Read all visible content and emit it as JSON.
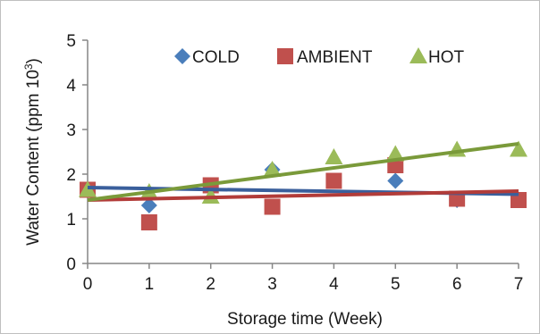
{
  "chart_data": {
    "type": "scatter",
    "title": "",
    "xlabel": "Storage time (Week)",
    "ylabel_main": "Water Content (ppm 10",
    "ylabel_sup": "3",
    "ylabel_close": ")",
    "xlim": [
      0,
      7
    ],
    "ylim": [
      0,
      5
    ],
    "xticks": [
      0,
      1,
      2,
      3,
      4,
      5,
      6,
      7
    ],
    "yticks": [
      0,
      1,
      2,
      3,
      4,
      5
    ],
    "grid": false,
    "legend_position": "top",
    "series": [
      {
        "name": "COLD",
        "marker": "diamond",
        "color": "#4a7ebb",
        "x": [
          0,
          1,
          2,
          3,
          4,
          5,
          6,
          7
        ],
        "y": [
          1.65,
          1.3,
          1.68,
          2.1,
          1.85,
          1.85,
          1.42,
          1.42
        ],
        "trendline": {
          "x": [
            0,
            7
          ],
          "y": [
            1.7,
            1.55
          ]
        }
      },
      {
        "name": "AMBIENT",
        "marker": "square",
        "color": "#c0504d",
        "x": [
          0,
          1,
          2,
          3,
          4,
          5,
          6,
          7
        ],
        "y": [
          1.65,
          0.92,
          1.75,
          1.27,
          1.85,
          2.2,
          1.45,
          1.42
        ],
        "trendline": {
          "x": [
            0,
            7
          ],
          "y": [
            1.42,
            1.62
          ]
        }
      },
      {
        "name": "HOT",
        "marker": "triangle",
        "color": "#9bbb59",
        "x": [
          0,
          1,
          2,
          3,
          4,
          5,
          6,
          7
        ],
        "y": [
          1.65,
          1.6,
          1.5,
          2.1,
          2.38,
          2.45,
          2.55,
          2.55
        ],
        "trendline": {
          "x": [
            0,
            7
          ],
          "y": [
            1.42,
            2.68
          ]
        }
      }
    ],
    "trendline_colors": {
      "COLD": "#3a5f9c",
      "AMBIENT": "#b23c39",
      "HOT": "#7a9a3a"
    }
  }
}
